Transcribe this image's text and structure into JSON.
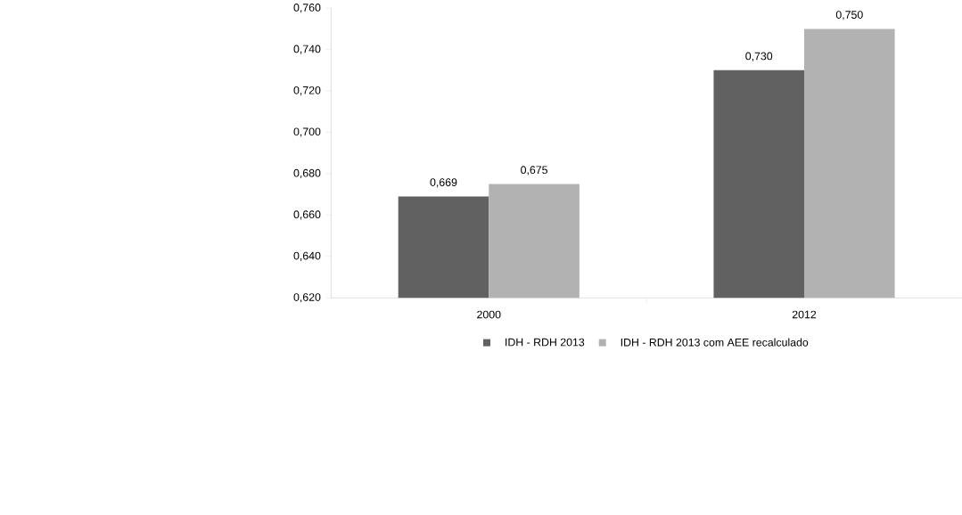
{
  "chart_data": {
    "type": "bar",
    "categories": [
      "2000",
      "2012"
    ],
    "series": [
      {
        "name": "IDH - RDH 2013",
        "color": "#616161",
        "values": [
          0.669,
          0.73
        ],
        "value_labels": [
          "0,669",
          "0,730"
        ]
      },
      {
        "name": "IDH - RDH 2013 com AEE recalculado",
        "color": "#b2b2b2",
        "values": [
          0.675,
          0.75
        ],
        "value_labels": [
          "0,675",
          "0,750"
        ]
      }
    ],
    "ylim": [
      0.62,
      0.76
    ],
    "yticks": [
      {
        "value": 0.62,
        "label": "0,620"
      },
      {
        "value": 0.64,
        "label": "0,640"
      },
      {
        "value": 0.66,
        "label": "0,660"
      },
      {
        "value": 0.68,
        "label": "0,680"
      },
      {
        "value": 0.7,
        "label": "0,700"
      },
      {
        "value": 0.72,
        "label": "0,720"
      },
      {
        "value": 0.74,
        "label": "0,740"
      },
      {
        "value": 0.76,
        "label": "0,760"
      }
    ],
    "legend": "bottom"
  }
}
